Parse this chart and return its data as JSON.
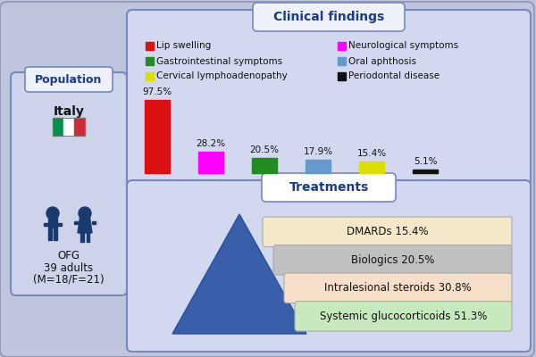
{
  "bg_color": "#bfc5dd",
  "population_box": {
    "label": "Population",
    "country": "Italy",
    "study_lines": [
      "OFG",
      "39 adults",
      "(M=18/F=21)"
    ]
  },
  "clinical_title": "Clinical findings",
  "bar_data": [
    {
      "label": "Lip swelling",
      "value": 97.5,
      "color": "#dd1111"
    },
    {
      "label": "Neurological symptoms",
      "value": 28.2,
      "color": "#ff00ff"
    },
    {
      "label": "Gastrointestinal symptoms",
      "value": 20.5,
      "color": "#228B22"
    },
    {
      "label": "Oral aphthosis",
      "value": 17.9,
      "color": "#6699cc"
    },
    {
      "label": "Cervical lymphoadenopathy",
      "value": 15.4,
      "color": "#dddd00"
    },
    {
      "label": "Periodontal disease",
      "value": 5.1,
      "color": "#111111"
    }
  ],
  "treatments_title": "Treatments",
  "treatments": [
    {
      "label": "DMARDs 15.4%",
      "color": "#f5e8c8"
    },
    {
      "label": "Biologics 20.5%",
      "color": "#c0c0c0"
    },
    {
      "label": "Intralesional steroids 30.8%",
      "color": "#f5dfc8"
    },
    {
      "label": "Systemic glucocorticoids 51.3%",
      "color": "#c8e8c0"
    }
  ],
  "flag_colors": [
    "#009246",
    "#ffffff",
    "#ce2b37"
  ],
  "person_color": "#1a3a6e",
  "box_face": "#cdd3eb",
  "box_edge": "#7788bb",
  "pill_face": "#eef0fa",
  "inner_box_face": "#d2d8f0"
}
